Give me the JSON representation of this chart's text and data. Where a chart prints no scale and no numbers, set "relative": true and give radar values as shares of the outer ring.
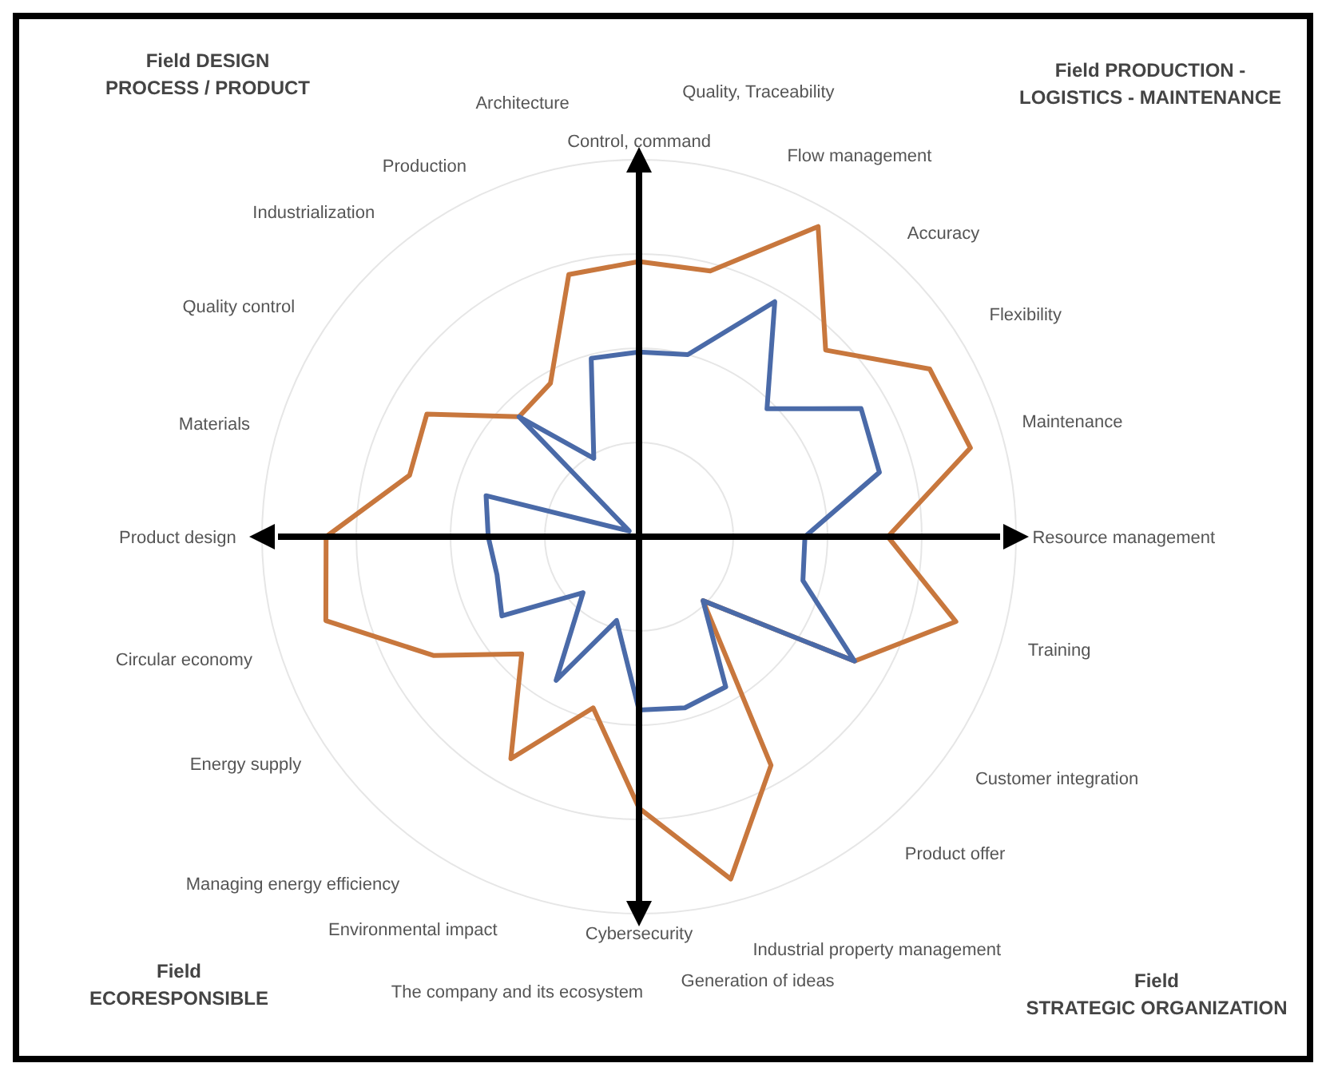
{
  "chart_data": {
    "type": "radar",
    "relative": true,
    "grid": true,
    "categories": [
      "Control, command",
      "Quality, Traceability",
      "Flow management",
      "Accuracy",
      "Flexibility",
      "Maintenance",
      "Resource management",
      "Training",
      "Customer integration",
      "Product offer",
      "Industrial property management",
      "Generation of ideas",
      "Cybersecurity",
      "The company and its ecosystem",
      "Environmental impact",
      "Managing energy efficiency",
      "Energy supply",
      "Circular economy",
      "Product design",
      "Materials",
      "Quality control",
      "Industrialization",
      "Production",
      "Architecture"
    ],
    "series": [
      {
        "color": "#c8773d",
        "values": [
          0.73,
          0.73,
          0.95,
          0.7,
          0.89,
          0.91,
          0.66,
          0.87,
          0.66,
          0.24,
          0.7,
          0.94,
          0.72,
          0.47,
          0.68,
          0.44,
          0.63,
          0.86,
          0.83,
          0.63,
          0.65,
          0.45,
          0.47,
          0.72
        ]
      },
      {
        "color": "#4a6aa8",
        "values": [
          0.49,
          0.5,
          0.72,
          0.48,
          0.68,
          0.66,
          0.44,
          0.45,
          0.66,
          0.24,
          0.46,
          0.47,
          0.46,
          0.23,
          0.44,
          0.21,
          0.42,
          0.39,
          0.4,
          0.42,
          0.03,
          0.45,
          0.24,
          0.49
        ]
      }
    ],
    "annotations": [
      "Field DESIGN\nPROCESS / PRODUCT",
      "Field PRODUCTION -\nLOGISTICS - MAINTENANCE",
      "Field\nECORESPONSIBLE",
      "Field\nSTRATEGIC ORGANIZATION"
    ]
  }
}
